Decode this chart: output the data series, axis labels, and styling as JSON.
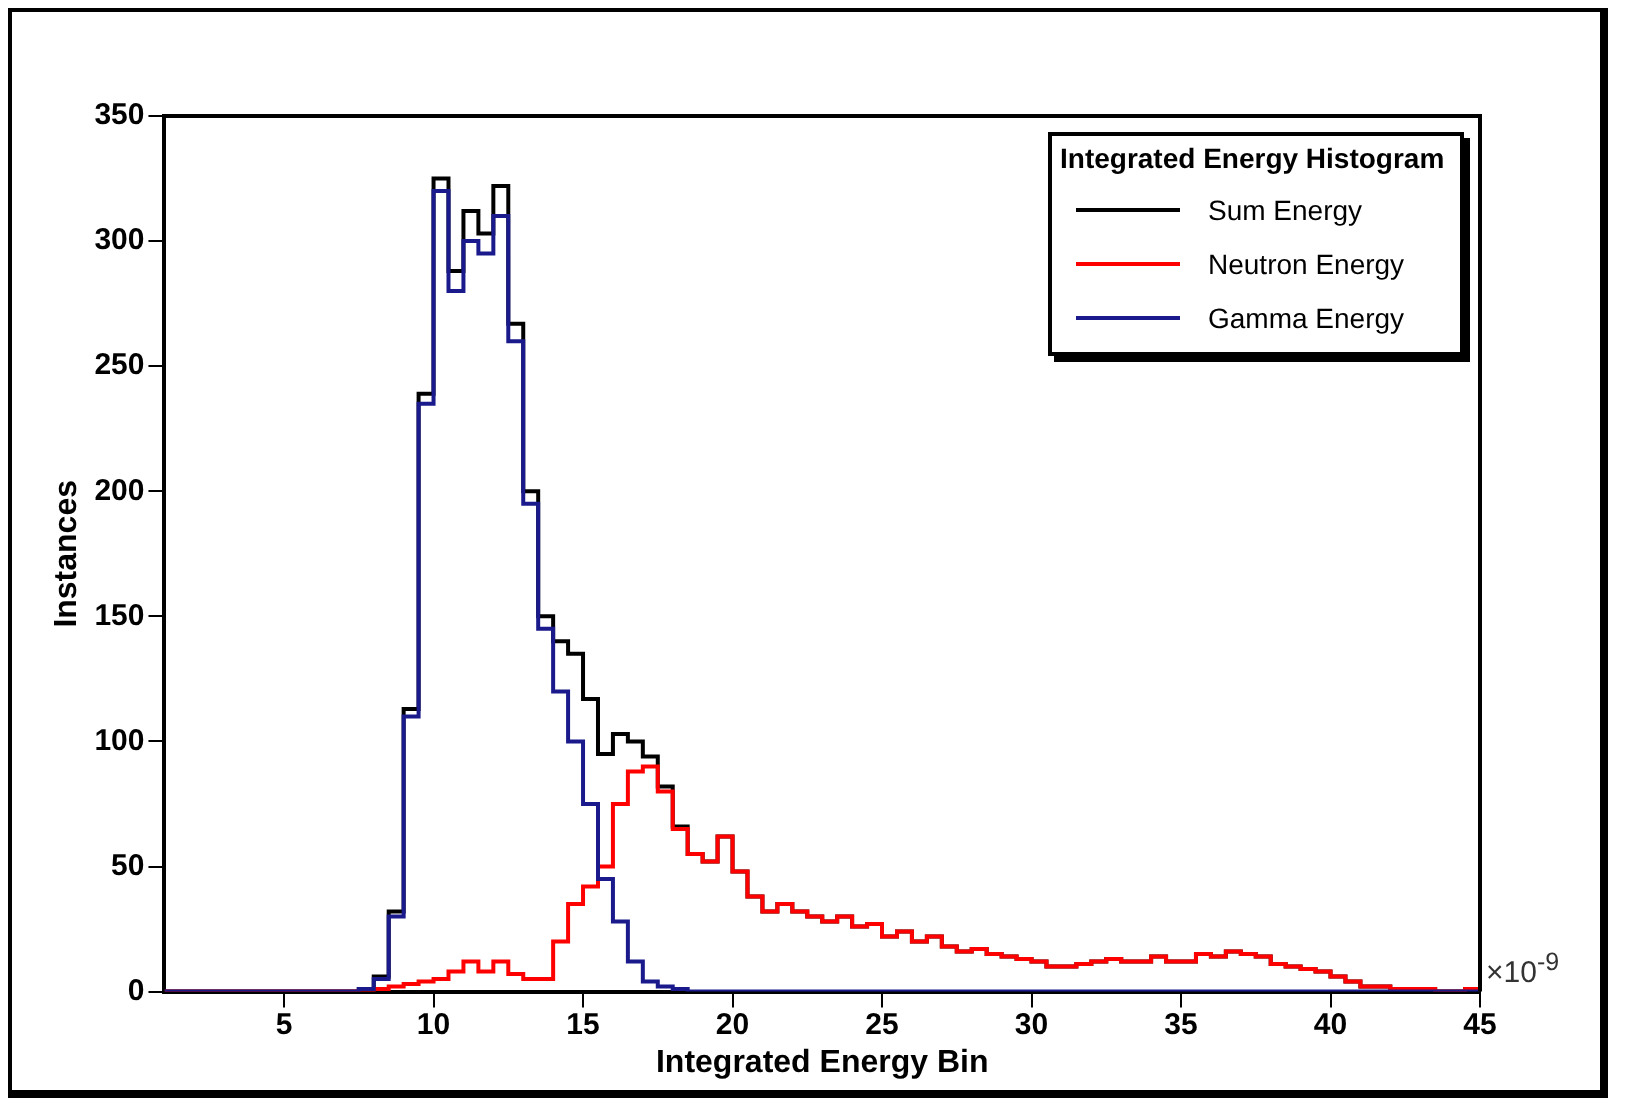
{
  "chart_data": {
    "type": "histogram",
    "xlabel": "Integrated Energy Bin",
    "ylabel": "Instances",
    "legend_title": "Integrated Energy Histogram",
    "legend": "top right",
    "grid": false,
    "annotations": [
      "×10$^{-9}$"
    ],
    "xlim": [
      1,
      45
    ],
    "xticks": [
      5,
      10,
      15,
      20,
      25,
      30,
      35,
      40,
      45
    ],
    "ylim": [
      0,
      350
    ],
    "yticks": [
      0,
      50,
      100,
      150,
      200,
      250,
      300,
      350
    ],
    "bins": [
      1,
      1.5,
      2,
      2.5,
      3,
      3.5,
      4,
      4.5,
      5,
      5.5,
      6,
      6.5,
      7,
      7.5,
      8,
      8.5,
      9,
      9.5,
      10,
      10.5,
      11,
      11.5,
      12,
      12.5,
      13,
      13.5,
      14,
      14.5,
      15,
      15.5,
      16,
      16.5,
      17,
      17.5,
      18,
      18.5,
      19,
      19.5,
      20,
      20.5,
      21,
      21.5,
      22,
      22.5,
      23,
      23.5,
      24,
      24.5,
      25,
      25.5,
      26,
      26.5,
      27,
      27.5,
      28,
      28.5,
      29,
      29.5,
      30,
      30.5,
      31,
      31.5,
      32,
      32.5,
      33,
      33.5,
      34,
      34.5,
      35,
      35.5,
      36,
      36.5,
      37,
      37.5,
      38,
      38.5,
      39,
      39.5,
      40,
      40.5,
      41,
      41.5,
      42,
      42.5,
      43,
      43.5,
      44,
      44.5,
      45
    ],
    "series": [
      {
        "name": "Sum Energy",
        "color": "#000000",
        "values": [
          0,
          0,
          0,
          0,
          0,
          0,
          0,
          0,
          0,
          0,
          0,
          0,
          0,
          1,
          6,
          32,
          113,
          239,
          325,
          288,
          312,
          303,
          322,
          267,
          200,
          150,
          140,
          135,
          117,
          95,
          103,
          100,
          94,
          82,
          66,
          55,
          52,
          62,
          48,
          38,
          32,
          35,
          32,
          30,
          28,
          30,
          26,
          27,
          22,
          24,
          20,
          22,
          18,
          16,
          17,
          15,
          14,
          13,
          12,
          10,
          10,
          11,
          12,
          13,
          12,
          12,
          14,
          12,
          12,
          15,
          14,
          16,
          15,
          14,
          11,
          10,
          9,
          8,
          6,
          4,
          2,
          2,
          1,
          1,
          1,
          0,
          0,
          1
        ]
      },
      {
        "name": "Neutron Energy",
        "color": "#ff0000",
        "values": [
          0,
          0,
          0,
          0,
          0,
          0,
          0,
          0,
          0,
          0,
          0,
          0,
          0,
          0,
          1,
          2,
          3,
          4,
          5,
          8,
          12,
          8,
          12,
          7,
          5,
          5,
          20,
          35,
          42,
          50,
          75,
          88,
          90,
          80,
          65,
          55,
          52,
          62,
          48,
          38,
          32,
          35,
          32,
          30,
          28,
          30,
          26,
          27,
          22,
          24,
          20,
          22,
          18,
          16,
          17,
          15,
          14,
          13,
          12,
          10,
          10,
          11,
          12,
          13,
          12,
          12,
          14,
          12,
          12,
          15,
          14,
          16,
          15,
          14,
          11,
          10,
          9,
          8,
          6,
          4,
          2,
          2,
          1,
          1,
          1,
          0,
          0,
          1
        ]
      },
      {
        "name": "Gamma Energy",
        "color": "#1a1a8c",
        "values": [
          0,
          0,
          0,
          0,
          0,
          0,
          0,
          0,
          0,
          0,
          0,
          0,
          0,
          1,
          5,
          30,
          110,
          235,
          320,
          280,
          300,
          295,
          310,
          260,
          195,
          145,
          120,
          100,
          75,
          45,
          28,
          12,
          4,
          2,
          1,
          0,
          0,
          0,
          0,
          0,
          0,
          0,
          0,
          0,
          0,
          0,
          0,
          0,
          0,
          0,
          0,
          0,
          0,
          0,
          0,
          0,
          0,
          0,
          0,
          0,
          0,
          0,
          0,
          0,
          0,
          0,
          0,
          0,
          0,
          0,
          0,
          0,
          0,
          0,
          0,
          0,
          0,
          0,
          0,
          0,
          0,
          0,
          0,
          0,
          0,
          0,
          0,
          0
        ]
      }
    ]
  }
}
